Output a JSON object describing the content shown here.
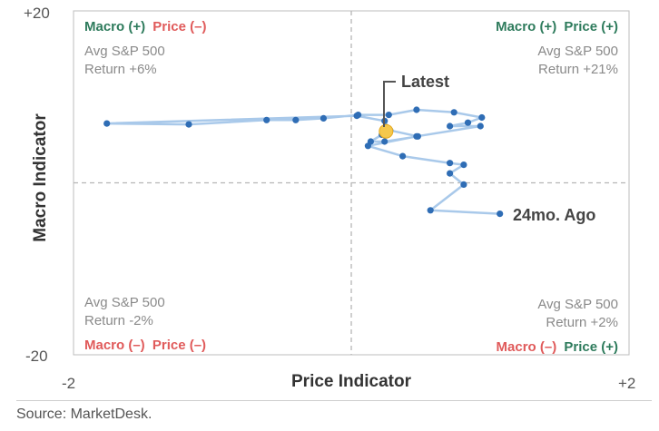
{
  "chart_data": {
    "type": "scatter",
    "xlabel": "Price Indicator",
    "ylabel": "Macro Indicator",
    "xlim": [
      -2,
      2
    ],
    "ylim": [
      -20,
      20
    ],
    "x_ticks": [
      "-2",
      "+2"
    ],
    "y_ticks": [
      "+20",
      "-20"
    ],
    "grid": false,
    "reference_lines": {
      "x": 0,
      "y": 0
    },
    "line_color": "#a9c9ea",
    "point_color": "#2f6db5",
    "latest_color": "#f5c84c",
    "series": [
      {
        "points": [
          {
            "x": 1.07,
            "y": -3.6
          },
          {
            "x": 0.57,
            "y": -3.2
          },
          {
            "x": 0.81,
            "y": -0.2
          },
          {
            "x": 0.71,
            "y": 1.1
          },
          {
            "x": 0.81,
            "y": 2.1
          },
          {
            "x": 0.71,
            "y": 2.3
          },
          {
            "x": 0.37,
            "y": 3.1
          },
          {
            "x": 0.12,
            "y": 4.3
          },
          {
            "x": 0.47,
            "y": 5.4
          },
          {
            "x": 0.93,
            "y": 6.6
          },
          {
            "x": 0.71,
            "y": 6.6
          },
          {
            "x": 0.84,
            "y": 7.0
          },
          {
            "x": 0.94,
            "y": 7.6
          },
          {
            "x": 0.74,
            "y": 8.2
          },
          {
            "x": 0.47,
            "y": 8.5
          },
          {
            "x": 0.27,
            "y": 7.9
          },
          {
            "x": 0.05,
            "y": 7.9
          },
          {
            "x": -0.2,
            "y": 7.5
          },
          {
            "x": -0.4,
            "y": 7.3
          },
          {
            "x": -0.61,
            "y": 7.3
          },
          {
            "x": -1.17,
            "y": 6.8
          },
          {
            "x": -1.76,
            "y": 6.9
          },
          {
            "x": 0.04,
            "y": 7.8
          },
          {
            "x": 0.24,
            "y": 7.2
          },
          {
            "x": 0.28,
            "y": 6.1
          },
          {
            "x": 0.48,
            "y": 5.4
          },
          {
            "x": 0.24,
            "y": 4.8
          },
          {
            "x": 0.14,
            "y": 4.8
          },
          {
            "x": 0.22,
            "y": 5.6
          },
          {
            "x": 0.25,
            "y": 6.0
          }
        ]
      }
    ],
    "quadrants": {
      "top_left": {
        "macro": "Macro (+)",
        "price": "Price (–)",
        "note1": "Avg S&P 500",
        "note2": "Return +6%"
      },
      "top_right": {
        "macro": "Macro (+)",
        "price": "Price (+)",
        "note1": "Avg S&P 500",
        "note2": "Return +21%"
      },
      "bottom_left": {
        "macro": "Macro (–)",
        "price": "Price (–)",
        "note1": "Avg S&P 500",
        "note2": "Return -2%"
      },
      "bottom_right": {
        "macro": "Macro (–)",
        "price": "Price (+)",
        "note1": "Avg S&P 500",
        "note2": "Return +2%"
      }
    },
    "annotations": {
      "latest": "Latest",
      "oldest": "24mo. Ago"
    },
    "quadrant_colors": {
      "positive": "#2e7b5c",
      "negative": "#e05a5a"
    }
  },
  "source": "Source: MarketDesk."
}
